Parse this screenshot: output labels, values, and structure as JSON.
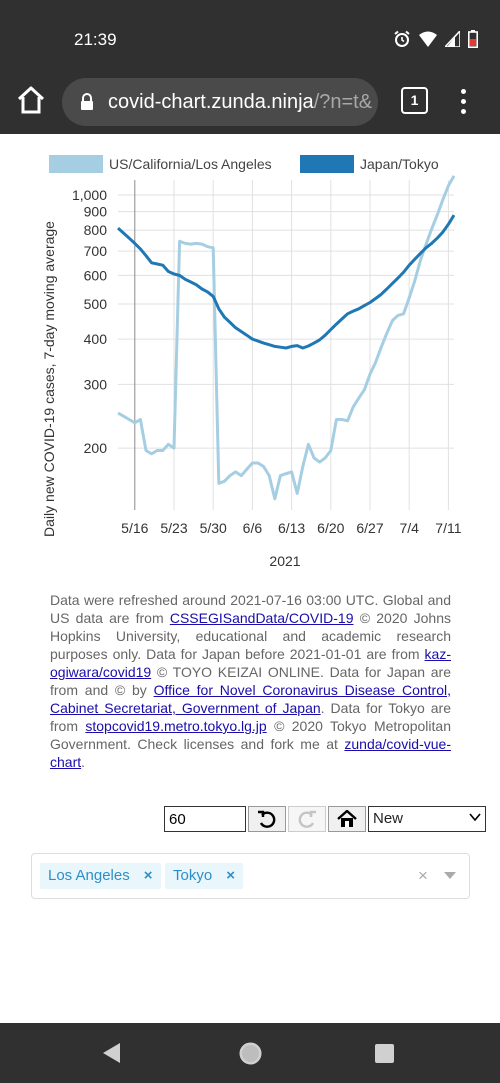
{
  "status_bar": {
    "time": "21:39",
    "icons": [
      "alarm-icon",
      "wifi-icon",
      "signal-icon",
      "battery-icon"
    ]
  },
  "browser": {
    "url_host": "covid-chart.zunda.ninja",
    "url_rest": "/?n=t&",
    "tab_count": "1"
  },
  "chart_data": {
    "type": "line",
    "ylabel": "Daily new COVID-19 cases, 7-day moving average",
    "xlabel": "2021",
    "y_scale": "log",
    "ylim": [
      135,
      1100
    ],
    "y_ticks": [
      "200",
      "300",
      "400",
      "500",
      "600",
      "700",
      "800",
      "900",
      "1,000"
    ],
    "x_ticks": [
      "5/16",
      "5/23",
      "5/30",
      "6/6",
      "6/13",
      "6/20",
      "6/27",
      "7/4",
      "7/11"
    ],
    "grid": true,
    "legend_position": "top",
    "series": [
      {
        "name": "US/California/Los Angeles",
        "color": "#a6cee3",
        "dates": [
          "5/13",
          "5/14",
          "5/15",
          "5/16",
          "5/17",
          "5/18",
          "5/19",
          "5/20",
          "5/21",
          "5/22",
          "5/23",
          "5/24",
          "5/25",
          "5/26",
          "5/27",
          "5/28",
          "5/29",
          "5/30",
          "5/31",
          "6/1",
          "6/2",
          "6/3",
          "6/4",
          "6/5",
          "6/6",
          "6/7",
          "6/8",
          "6/9",
          "6/10",
          "6/11",
          "6/12",
          "6/13",
          "6/14",
          "6/15",
          "6/16",
          "6/17",
          "6/18",
          "6/19",
          "6/20",
          "6/21",
          "6/22",
          "6/23",
          "6/24",
          "6/25",
          "6/26",
          "6/27",
          "6/28",
          "6/29",
          "6/30",
          "7/1",
          "7/2",
          "7/3",
          "7/4",
          "7/5",
          "7/6",
          "7/7",
          "7/8",
          "7/9",
          "7/10",
          "7/11",
          "7/12"
        ],
        "values": [
          250,
          245,
          240,
          235,
          240,
          197,
          193,
          197,
          197,
          205,
          200,
          745,
          735,
          732,
          735,
          732,
          720,
          715,
          160,
          162,
          168,
          172,
          168,
          175,
          182,
          182,
          178,
          168,
          145,
          168,
          170,
          172,
          150,
          178,
          205,
          188,
          183,
          188,
          197,
          240,
          240,
          238,
          260,
          275,
          290,
          320,
          345,
          380,
          415,
          450,
          465,
          470,
          520,
          580,
          660,
          730,
          805,
          880,
          970,
          1060,
          1130
        ]
      },
      {
        "name": "Japan/Tokyo",
        "color": "#1f78b4",
        "dates": [
          "5/13",
          "5/14",
          "5/15",
          "5/16",
          "5/17",
          "5/18",
          "5/19",
          "5/20",
          "5/21",
          "5/22",
          "5/23",
          "5/24",
          "5/25",
          "5/26",
          "5/27",
          "5/28",
          "5/29",
          "5/30",
          "5/31",
          "6/1",
          "6/2",
          "6/3",
          "6/4",
          "6/5",
          "6/6",
          "6/7",
          "6/8",
          "6/9",
          "6/10",
          "6/11",
          "6/12",
          "6/13",
          "6/14",
          "6/15",
          "6/16",
          "6/17",
          "6/18",
          "6/19",
          "6/20",
          "6/21",
          "6/22",
          "6/23",
          "6/24",
          "6/25",
          "6/26",
          "6/27",
          "6/28",
          "6/29",
          "6/30",
          "7/1",
          "7/2",
          "7/3",
          "7/4",
          "7/5",
          "7/6",
          "7/7",
          "7/8",
          "7/9",
          "7/10",
          "7/11",
          "7/12"
        ],
        "values": [
          810,
          785,
          760,
          735,
          710,
          680,
          650,
          645,
          640,
          615,
          605,
          600,
          585,
          575,
          565,
          550,
          540,
          525,
          485,
          460,
          445,
          430,
          420,
          410,
          400,
          395,
          390,
          386,
          382,
          380,
          378,
          382,
          384,
          378,
          383,
          390,
          398,
          410,
          425,
          440,
          455,
          470,
          478,
          485,
          495,
          505,
          518,
          532,
          550,
          570,
          590,
          612,
          640,
          665,
          690,
          715,
          735,
          760,
          790,
          830,
          880
        ]
      }
    ]
  },
  "info": {
    "t1": "Data were refreshed around 2021-07-16 03:00 UTC. Global and US data are from ",
    "l1": "CSSEGISandData/COVID-19",
    "t2": " © 2020 Johns Hopkins University, educational and academic research purposes only. Data for Japan before 2021-01-01 are from ",
    "l2": "kaz-ogiwara/covid19",
    "t3": " © TOYO KEIZAI ONLINE. Data for Japan are from and © by ",
    "l3": "Office for Novel Coronavirus Disease Control, Cabinet Secretariat, Government of Japan",
    "t4": ". Data for Tokyo are from ",
    "l4": "stopcovid19.metro.tokyo.lg.jp",
    "t5": " © 2020 Tokyo Metropolitan Government. Check licenses and fork me at ",
    "l5": "zunda/covid-vue-chart",
    "t6": "."
  },
  "controls": {
    "days_value": "60",
    "select_value": "New",
    "icons": [
      "undo-icon",
      "redo-icon",
      "home-icon"
    ]
  },
  "locations": {
    "tags": [
      "Los Angeles",
      "Tokyo"
    ],
    "remove_symbol": "×",
    "clear_symbol": "×"
  }
}
